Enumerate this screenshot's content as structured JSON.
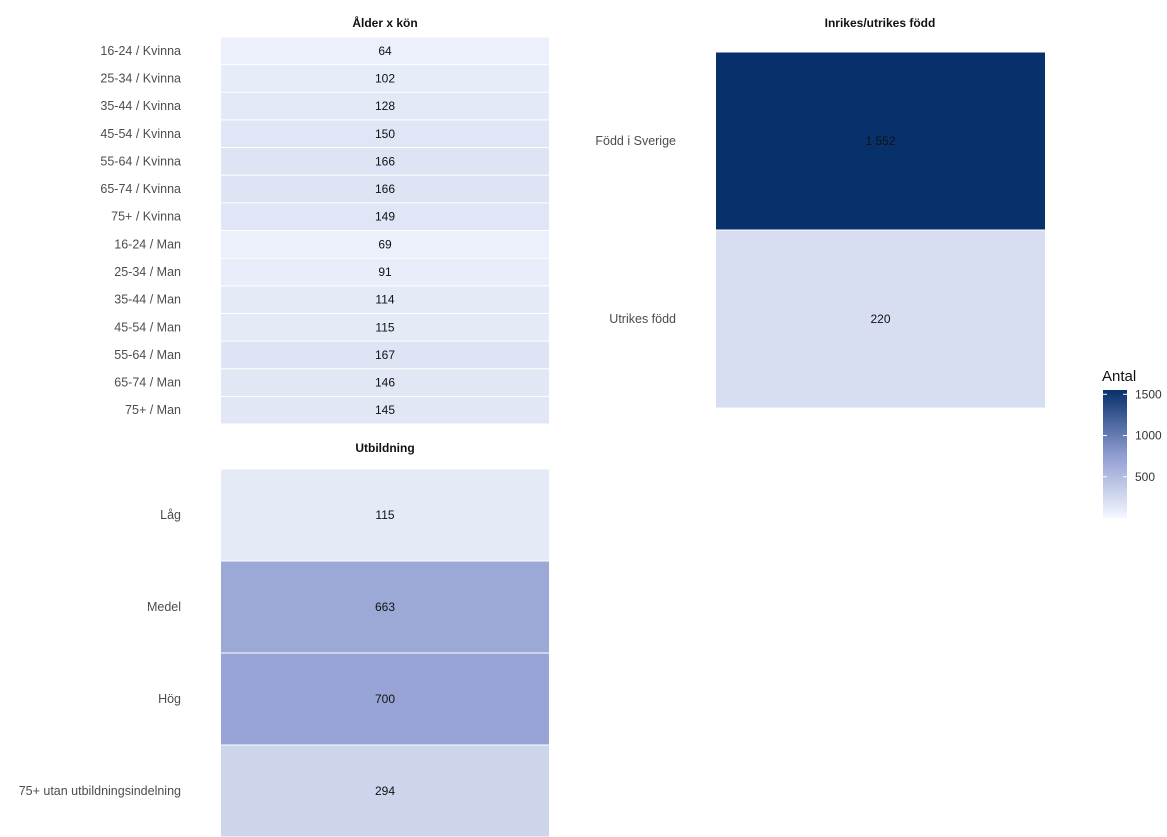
{
  "chart_data": [
    {
      "type": "heatmap",
      "title": "Ålder x kön",
      "categories": [
        "16-24 / Kvinna",
        "25-34 / Kvinna",
        "35-44 / Kvinna",
        "45-54 / Kvinna",
        "55-64 / Kvinna",
        "65-74 / Kvinna",
        "75+ / Kvinna",
        "16-24 / Man",
        "25-34 / Man",
        "35-44 / Man",
        "45-54 / Man",
        "55-64 / Man",
        "65-74 / Man",
        "75+ / Man"
      ],
      "values": [
        64,
        102,
        128,
        150,
        166,
        166,
        149,
        69,
        91,
        114,
        115,
        167,
        146,
        145
      ],
      "labels": [
        "64",
        "102",
        "128",
        "150",
        "166",
        "166",
        "149",
        "69",
        "91",
        "114",
        "115",
        "167",
        "146",
        "145"
      ]
    },
    {
      "type": "heatmap",
      "title": "Inrikes/utrikes född",
      "categories": [
        "Född i Sverige",
        "Utrikes född"
      ],
      "values": [
        1552,
        220
      ],
      "labels": [
        "1 552",
        "220"
      ]
    },
    {
      "type": "heatmap",
      "title": "Utbildning",
      "categories": [
        "Låg",
        "Medel",
        "Hög",
        "75+ utan utbildningsindelning"
      ],
      "values": [
        115,
        663,
        700,
        294
      ],
      "labels": [
        "115",
        "663",
        "700",
        "294"
      ]
    }
  ],
  "legend": {
    "title": "Antal",
    "ticks": [
      1500,
      1000,
      500
    ],
    "range": [
      0,
      1552
    ],
    "color_low": "#ffffff",
    "color_high": "#08306b"
  }
}
